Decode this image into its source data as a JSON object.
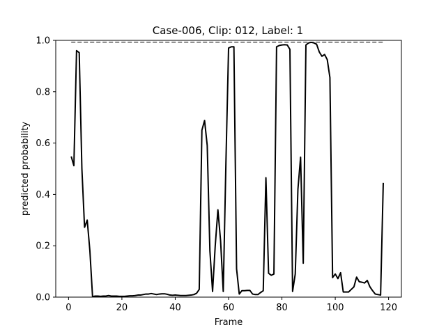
{
  "chart_data": {
    "type": "line",
    "title": "Case-006, Clip: 012, Label: 1",
    "xlabel": "Frame",
    "ylabel": "predicted probability",
    "xlim": [
      -4.8,
      124.8
    ],
    "ylim": [
      0,
      1
    ],
    "xticks": [
      0,
      20,
      40,
      60,
      80,
      100,
      120
    ],
    "yticks": [
      0.0,
      0.2,
      0.4,
      0.6,
      0.8,
      1.0
    ],
    "ytick_labels": [
      "0.0",
      "0.2",
      "0.4",
      "0.6",
      "0.8",
      "1.0"
    ],
    "grid": false,
    "colors": {
      "series": "#000000",
      "reference": "#555555"
    },
    "reference_line": {
      "y": 0.993,
      "x_start": 1,
      "x_end": 118,
      "style": "dashed"
    },
    "series": [
      {
        "x": [
          1,
          2,
          3,
          4,
          5,
          6,
          7,
          8,
          9,
          10,
          11,
          12,
          13,
          14,
          15,
          16,
          17,
          18,
          19,
          20,
          21,
          22,
          23,
          24,
          25,
          26,
          27,
          28,
          29,
          30,
          31,
          32,
          33,
          34,
          35,
          36,
          37,
          38,
          39,
          40,
          41,
          42,
          43,
          44,
          45,
          46,
          47,
          48,
          49,
          50,
          51,
          52,
          53,
          54,
          55,
          56,
          57,
          58,
          59,
          60,
          61,
          62,
          63,
          64,
          65,
          66,
          67,
          68,
          69,
          70,
          71,
          72,
          73,
          74,
          75,
          76,
          77,
          78,
          79,
          80,
          81,
          82,
          83,
          84,
          85,
          86,
          87,
          88,
          89,
          90,
          91,
          92,
          93,
          94,
          95,
          96,
          97,
          98,
          99,
          100,
          101,
          102,
          103,
          104,
          105,
          106,
          107,
          108,
          109,
          110,
          111,
          112,
          113,
          114,
          115,
          116,
          117,
          118
        ],
        "y": [
          0.548,
          0.512,
          0.96,
          0.952,
          0.5,
          0.272,
          0.3,
          0.18,
          0.002,
          0.004,
          0.004,
          0.003,
          0.004,
          0.004,
          0.006,
          0.004,
          0.004,
          0.004,
          0.003,
          0.003,
          0.003,
          0.004,
          0.005,
          0.005,
          0.006,
          0.008,
          0.008,
          0.01,
          0.012,
          0.012,
          0.014,
          0.012,
          0.01,
          0.012,
          0.013,
          0.013,
          0.011,
          0.008,
          0.007,
          0.008,
          0.007,
          0.006,
          0.006,
          0.006,
          0.007,
          0.008,
          0.01,
          0.015,
          0.03,
          0.65,
          0.688,
          0.59,
          0.18,
          0.022,
          0.2,
          0.34,
          0.22,
          0.022,
          0.52,
          0.97,
          0.975,
          0.975,
          0.11,
          0.012,
          0.025,
          0.025,
          0.026,
          0.026,
          0.012,
          0.01,
          0.01,
          0.018,
          0.025,
          0.465,
          0.093,
          0.085,
          0.09,
          0.975,
          0.98,
          0.982,
          0.983,
          0.982,
          0.965,
          0.022,
          0.09,
          0.42,
          0.545,
          0.132,
          0.982,
          0.99,
          0.992,
          0.99,
          0.985,
          0.955,
          0.938,
          0.945,
          0.925,
          0.855,
          0.076,
          0.09,
          0.072,
          0.095,
          0.02,
          0.02,
          0.02,
          0.03,
          0.04,
          0.078,
          0.06,
          0.058,
          0.055,
          0.065,
          0.04,
          0.025,
          0.012,
          0.01,
          0.008,
          0.445
        ]
      }
    ]
  }
}
